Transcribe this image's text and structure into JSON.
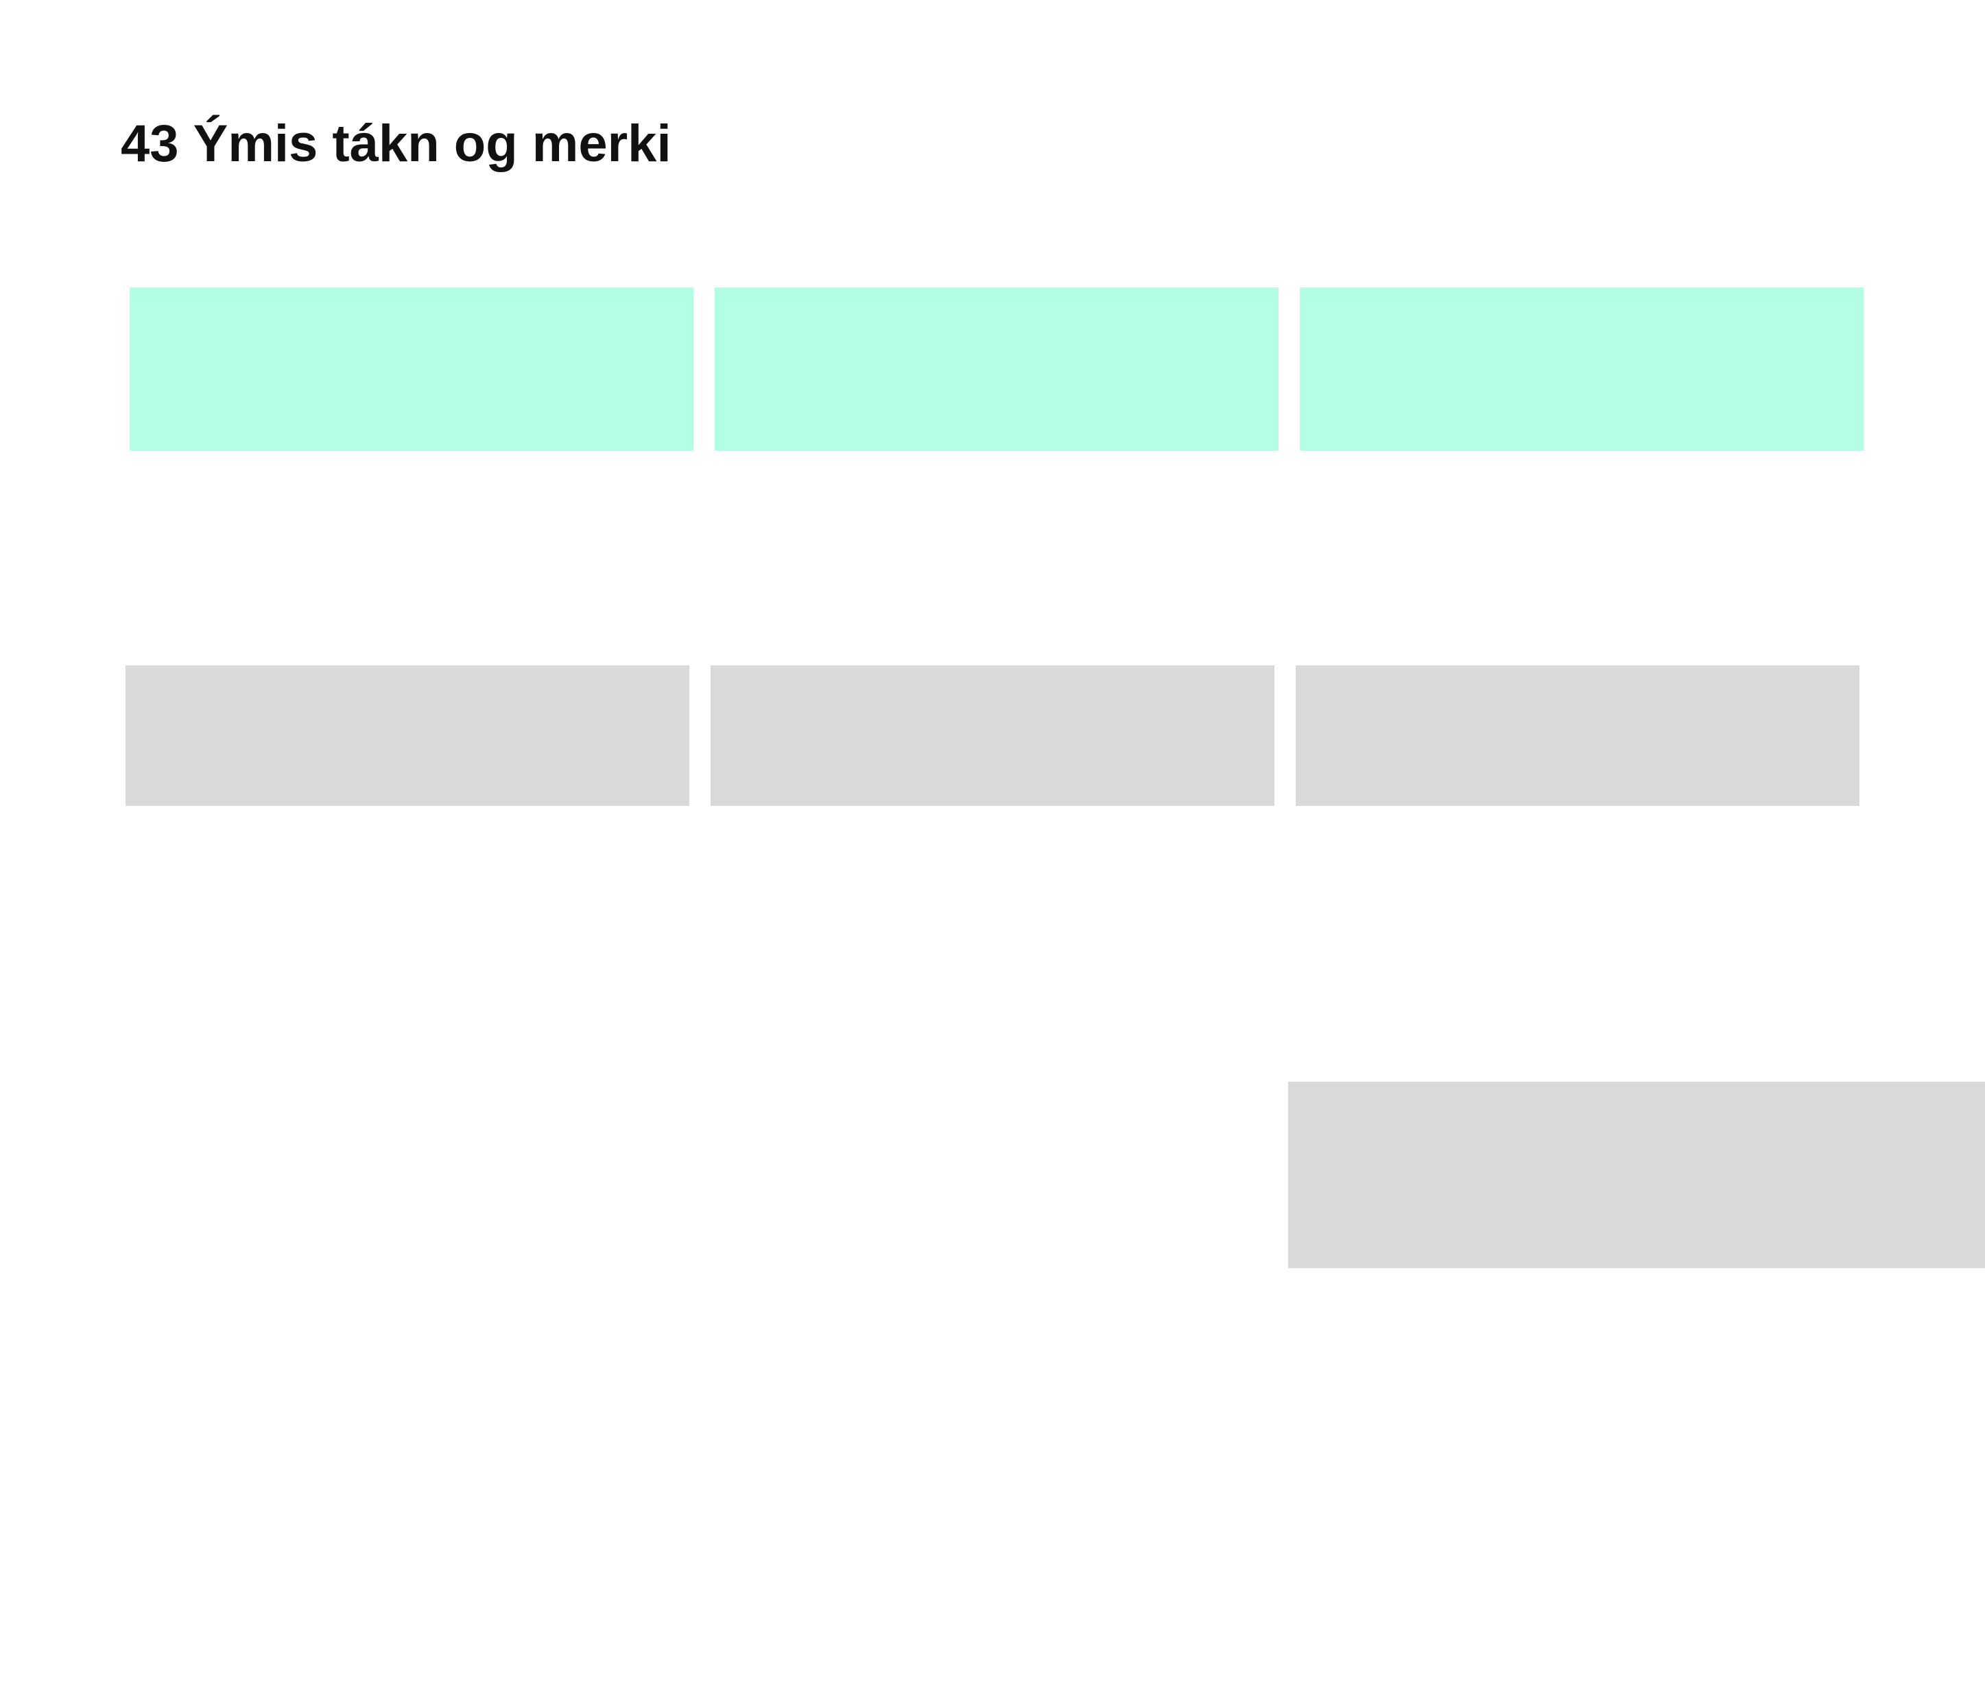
{
  "page": {
    "title": "43 Ýmis tákn og merki",
    "colors": {
      "header_cell": "#b3ffe3",
      "content_cell": "#d9d9d9",
      "background": "#ffffff",
      "text": "#111111"
    }
  }
}
